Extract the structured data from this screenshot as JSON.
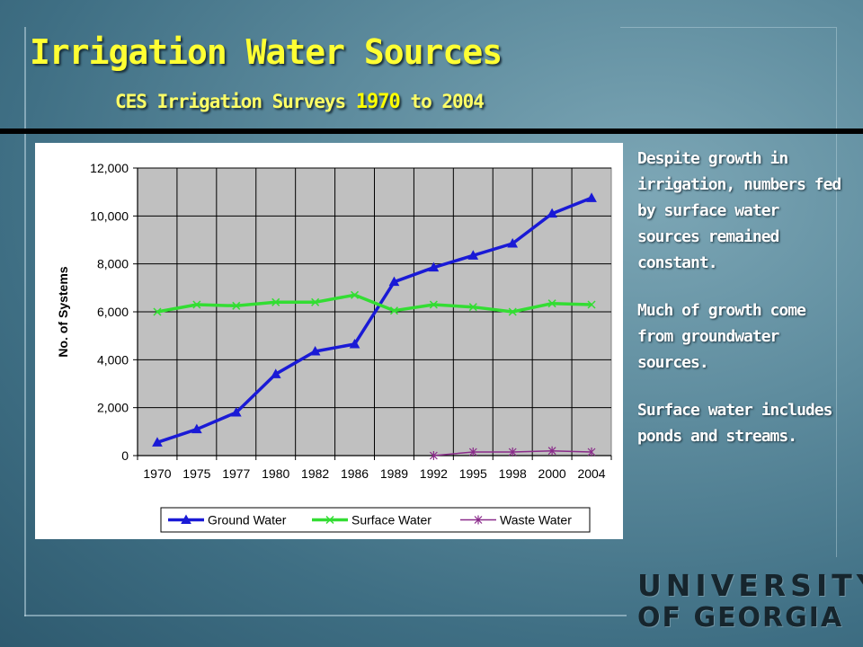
{
  "slide": {
    "title": "Irrigation Water Sources",
    "subtitle_pre": "CES Irrigation Surveys ",
    "subtitle_year_start": "1970",
    "subtitle_post": " to 2004",
    "notes": [
      "Despite growth in irrigation, numbers fed by surface water sources remained constant.",
      "Much of growth come from groundwater sources.",
      "Surface water includes ponds and streams."
    ],
    "logo": {
      "line1": "UNIVERSITY",
      "line2": "OF GEORGIA"
    }
  },
  "colors": {
    "title": "#ffff33",
    "ground_water": "#1a1ad6",
    "surface_water": "#33dd33",
    "waste_water": "#8a2b8a",
    "plot_bg": "#c0c0c0"
  },
  "chart_data": {
    "type": "line",
    "categories": [
      "1970",
      "1975",
      "1977",
      "1980",
      "1982",
      "1986",
      "1989",
      "1992",
      "1995",
      "1998",
      "2000",
      "2004"
    ],
    "ylabel": "No. of Systems",
    "xlabel": "",
    "ylim": [
      0,
      12000
    ],
    "yticks": [
      0,
      2000,
      4000,
      6000,
      8000,
      10000,
      12000
    ],
    "ytick_labels": [
      "0",
      "2,000",
      "4,000",
      "6,000",
      "8,000",
      "10,000",
      "12,000"
    ],
    "grid": true,
    "legend_position": "bottom",
    "series": [
      {
        "name": "Ground Water",
        "marker": "triangle",
        "color": "#1a1ad6",
        "values": [
          550,
          1100,
          1800,
          3400,
          4350,
          4650,
          7250,
          7850,
          8350,
          8850,
          10100,
          10750
        ]
      },
      {
        "name": "Surface Water",
        "marker": "x",
        "color": "#33dd33",
        "values": [
          6000,
          6300,
          6250,
          6400,
          6400,
          6700,
          6050,
          6300,
          6200,
          6000,
          6350,
          6300
        ]
      },
      {
        "name": "Waste Water",
        "marker": "star",
        "color": "#8a2b8a",
        "values": [
          null,
          null,
          null,
          null,
          null,
          null,
          null,
          0,
          150,
          150,
          200,
          150
        ]
      }
    ]
  }
}
